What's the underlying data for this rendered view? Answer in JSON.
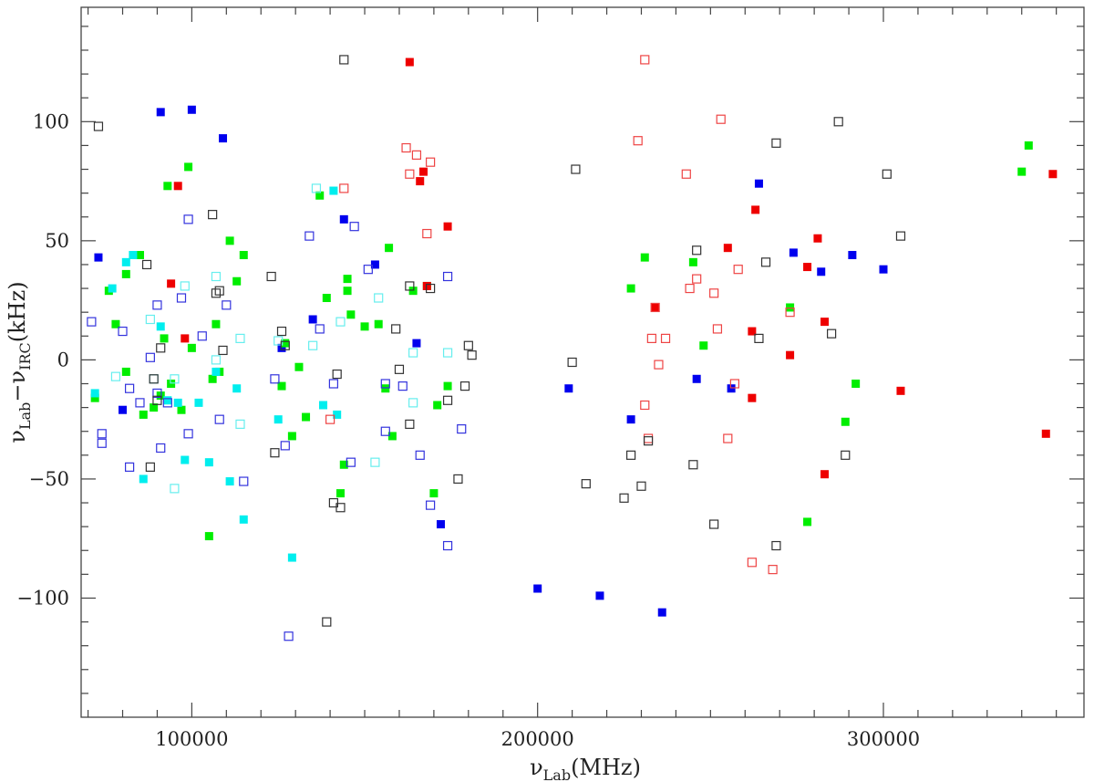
{
  "chart_data": {
    "type": "scatter",
    "title": "",
    "xlabel": {
      "symbol": "ν",
      "sub": "Lab",
      "unit": "(MHz)"
    },
    "ylabel": {
      "symbol": "ν",
      "sub1": "Lab",
      "mid": "−ν",
      "sub2": "IRC",
      "unit": "(kHz)"
    },
    "xlim": [
      68000,
      358000
    ],
    "ylim": [
      -150,
      148
    ],
    "xticks": [
      100000,
      200000,
      300000
    ],
    "xtick_labels": [
      "100000",
      "200000",
      "300000"
    ],
    "yticks": [
      -100,
      -50,
      0,
      50,
      100
    ],
    "ytick_labels": [
      "−100",
      "−50",
      "0",
      "50",
      "100"
    ],
    "grid": false,
    "series": [
      {
        "style": "filled",
        "color": "#0000ee",
        "points": [
          [
            73000,
            43
          ],
          [
            91000,
            104
          ],
          [
            100000,
            105
          ],
          [
            109000,
            93
          ],
          [
            80000,
            -21
          ],
          [
            126000,
            5
          ],
          [
            135000,
            17
          ],
          [
            144000,
            59
          ],
          [
            153000,
            40
          ],
          [
            165000,
            7
          ],
          [
            172000,
            -69
          ],
          [
            200000,
            -96
          ],
          [
            209000,
            -12
          ],
          [
            218000,
            -99
          ],
          [
            227000,
            -25
          ],
          [
            236000,
            -106
          ],
          [
            246000,
            -8
          ],
          [
            256000,
            -12
          ],
          [
            264000,
            74
          ],
          [
            274000,
            45
          ],
          [
            282000,
            37
          ],
          [
            291000,
            44
          ],
          [
            300000,
            38
          ]
        ]
      },
      {
        "style": "filled",
        "color": "#00ee00",
        "points": [
          [
            72000,
            -16
          ],
          [
            76000,
            29
          ],
          [
            78000,
            15
          ],
          [
            81000,
            36
          ],
          [
            81000,
            -5
          ],
          [
            85000,
            44
          ],
          [
            86000,
            -23
          ],
          [
            89000,
            -20
          ],
          [
            91000,
            -15
          ],
          [
            93000,
            73
          ],
          [
            92000,
            9
          ],
          [
            94000,
            -10
          ],
          [
            97000,
            -21
          ],
          [
            99000,
            81
          ],
          [
            100000,
            5
          ],
          [
            105000,
            -74
          ],
          [
            106000,
            -8
          ],
          [
            107000,
            15
          ],
          [
            108000,
            -5
          ],
          [
            111000,
            50
          ],
          [
            113000,
            33
          ],
          [
            115000,
            44
          ],
          [
            126000,
            -11
          ],
          [
            127000,
            7
          ],
          [
            129000,
            -32
          ],
          [
            131000,
            -3
          ],
          [
            133000,
            -24
          ],
          [
            137000,
            69
          ],
          [
            139000,
            26
          ],
          [
            143000,
            -56
          ],
          [
            144000,
            -44
          ],
          [
            145000,
            29
          ],
          [
            145000,
            34
          ],
          [
            146000,
            19
          ],
          [
            150000,
            14
          ],
          [
            154000,
            15
          ],
          [
            156000,
            -12
          ],
          [
            157000,
            47
          ],
          [
            158000,
            -32
          ],
          [
            164000,
            29
          ],
          [
            168000,
            31
          ],
          [
            170000,
            -56
          ],
          [
            171000,
            -19
          ],
          [
            174000,
            -11
          ],
          [
            227000,
            30
          ],
          [
            231000,
            43
          ],
          [
            245000,
            41
          ],
          [
            248000,
            6
          ],
          [
            273000,
            22
          ],
          [
            278000,
            -68
          ],
          [
            289000,
            -26
          ],
          [
            292000,
            -10
          ],
          [
            340000,
            79
          ],
          [
            342000,
            90
          ]
        ]
      },
      {
        "style": "filled",
        "color": "#00eeee",
        "points": [
          [
            72000,
            -14
          ],
          [
            77000,
            30
          ],
          [
            81000,
            41
          ],
          [
            83000,
            44
          ],
          [
            86000,
            -50
          ],
          [
            91000,
            14
          ],
          [
            93000,
            -17
          ],
          [
            96000,
            -18
          ],
          [
            98000,
            -42
          ],
          [
            102000,
            -18
          ],
          [
            105000,
            -43
          ],
          [
            107000,
            -5
          ],
          [
            111000,
            -51
          ],
          [
            113000,
            -12
          ],
          [
            115000,
            -67
          ],
          [
            125000,
            -25
          ],
          [
            129000,
            -83
          ],
          [
            138000,
            -19
          ],
          [
            141000,
            71
          ],
          [
            142000,
            -23
          ]
        ]
      },
      {
        "style": "filled",
        "color": "#ee0000",
        "points": [
          [
            94000,
            32
          ],
          [
            96000,
            73
          ],
          [
            98000,
            9
          ],
          [
            163000,
            125
          ],
          [
            166000,
            75
          ],
          [
            167000,
            79
          ],
          [
            168000,
            31
          ],
          [
            174000,
            56
          ],
          [
            234000,
            22
          ],
          [
            255000,
            47
          ],
          [
            262000,
            12
          ],
          [
            263000,
            63
          ],
          [
            262000,
            -16
          ],
          [
            273000,
            2
          ],
          [
            278000,
            39
          ],
          [
            281000,
            51
          ],
          [
            283000,
            16
          ],
          [
            283000,
            -48
          ],
          [
            305000,
            -13
          ],
          [
            347000,
            -31
          ],
          [
            349000,
            78
          ]
        ]
      },
      {
        "style": "open",
        "color": "#3333dd",
        "points": [
          [
            71000,
            16
          ],
          [
            74000,
            -31
          ],
          [
            74000,
            -35
          ],
          [
            80000,
            12
          ],
          [
            82000,
            -12
          ],
          [
            82000,
            -45
          ],
          [
            85000,
            -18
          ],
          [
            88000,
            1
          ],
          [
            90000,
            -14
          ],
          [
            90000,
            23
          ],
          [
            91000,
            -37
          ],
          [
            93000,
            -18
          ],
          [
            97000,
            26
          ],
          [
            99000,
            -31
          ],
          [
            99000,
            59
          ],
          [
            103000,
            10
          ],
          [
            108000,
            -25
          ],
          [
            110000,
            23
          ],
          [
            115000,
            -51
          ],
          [
            124000,
            -8
          ],
          [
            127000,
            -36
          ],
          [
            128000,
            -116
          ],
          [
            134000,
            52
          ],
          [
            137000,
            13
          ],
          [
            141000,
            -10
          ],
          [
            146000,
            -43
          ],
          [
            147000,
            56
          ],
          [
            151000,
            38
          ],
          [
            156000,
            -10
          ],
          [
            156000,
            -30
          ],
          [
            161000,
            -11
          ],
          [
            166000,
            -40
          ],
          [
            169000,
            -61
          ],
          [
            174000,
            35
          ],
          [
            174000,
            -78
          ],
          [
            178000,
            -29
          ]
        ]
      },
      {
        "style": "open",
        "color": "#66eeee",
        "points": [
          [
            78000,
            -7
          ],
          [
            88000,
            17
          ],
          [
            89000,
            -8
          ],
          [
            95000,
            -54
          ],
          [
            95000,
            -8
          ],
          [
            98000,
            31
          ],
          [
            107000,
            0
          ],
          [
            107000,
            35
          ],
          [
            114000,
            9
          ],
          [
            114000,
            -27
          ],
          [
            125000,
            8
          ],
          [
            135000,
            6
          ],
          [
            136000,
            72
          ],
          [
            143000,
            16
          ],
          [
            153000,
            -43
          ],
          [
            154000,
            26
          ],
          [
            164000,
            3
          ],
          [
            164000,
            -18
          ],
          [
            174000,
            3
          ]
        ]
      },
      {
        "style": "open",
        "color": "#ee4444",
        "points": [
          [
            140000,
            -25
          ],
          [
            144000,
            72
          ],
          [
            162000,
            89
          ],
          [
            163000,
            78
          ],
          [
            165000,
            86
          ],
          [
            168000,
            53
          ],
          [
            169000,
            83
          ],
          [
            229000,
            92
          ],
          [
            231000,
            -19
          ],
          [
            231000,
            126
          ],
          [
            232000,
            -33
          ],
          [
            233000,
            9
          ],
          [
            234000,
            22
          ],
          [
            235000,
            -2
          ],
          [
            237000,
            9
          ],
          [
            243000,
            78
          ],
          [
            244000,
            30
          ],
          [
            246000,
            34
          ],
          [
            251000,
            28
          ],
          [
            252000,
            13
          ],
          [
            253000,
            101
          ],
          [
            255000,
            -33
          ],
          [
            257000,
            -10
          ],
          [
            258000,
            38
          ],
          [
            262000,
            -85
          ],
          [
            268000,
            -88
          ],
          [
            273000,
            20
          ]
        ]
      },
      {
        "style": "open",
        "color": "#333333",
        "points": [
          [
            73000,
            98
          ],
          [
            87000,
            40
          ],
          [
            88000,
            -45
          ],
          [
            89000,
            -8
          ],
          [
            90000,
            -17
          ],
          [
            91000,
            5
          ],
          [
            106000,
            61
          ],
          [
            107000,
            28
          ],
          [
            108000,
            29
          ],
          [
            109000,
            4
          ],
          [
            123000,
            35
          ],
          [
            124000,
            -39
          ],
          [
            126000,
            12
          ],
          [
            127000,
            6
          ],
          [
            139000,
            -110
          ],
          [
            141000,
            -60
          ],
          [
            142000,
            -6
          ],
          [
            143000,
            -62
          ],
          [
            144000,
            126
          ],
          [
            159000,
            13
          ],
          [
            160000,
            -4
          ],
          [
            163000,
            -27
          ],
          [
            163000,
            31
          ],
          [
            169000,
            30
          ],
          [
            174000,
            -17
          ],
          [
            177000,
            -50
          ],
          [
            179000,
            -11
          ],
          [
            180000,
            6
          ],
          [
            181000,
            2
          ],
          [
            210000,
            -1
          ],
          [
            211000,
            80
          ],
          [
            214000,
            -52
          ],
          [
            225000,
            -58
          ],
          [
            227000,
            -40
          ],
          [
            230000,
            -53
          ],
          [
            232000,
            -34
          ],
          [
            245000,
            -44
          ],
          [
            246000,
            46
          ],
          [
            251000,
            -69
          ],
          [
            264000,
            9
          ],
          [
            266000,
            41
          ],
          [
            269000,
            91
          ],
          [
            269000,
            -78
          ],
          [
            285000,
            11
          ],
          [
            287000,
            100
          ],
          [
            289000,
            -40
          ],
          [
            301000,
            78
          ],
          [
            305000,
            52
          ]
        ]
      }
    ]
  }
}
